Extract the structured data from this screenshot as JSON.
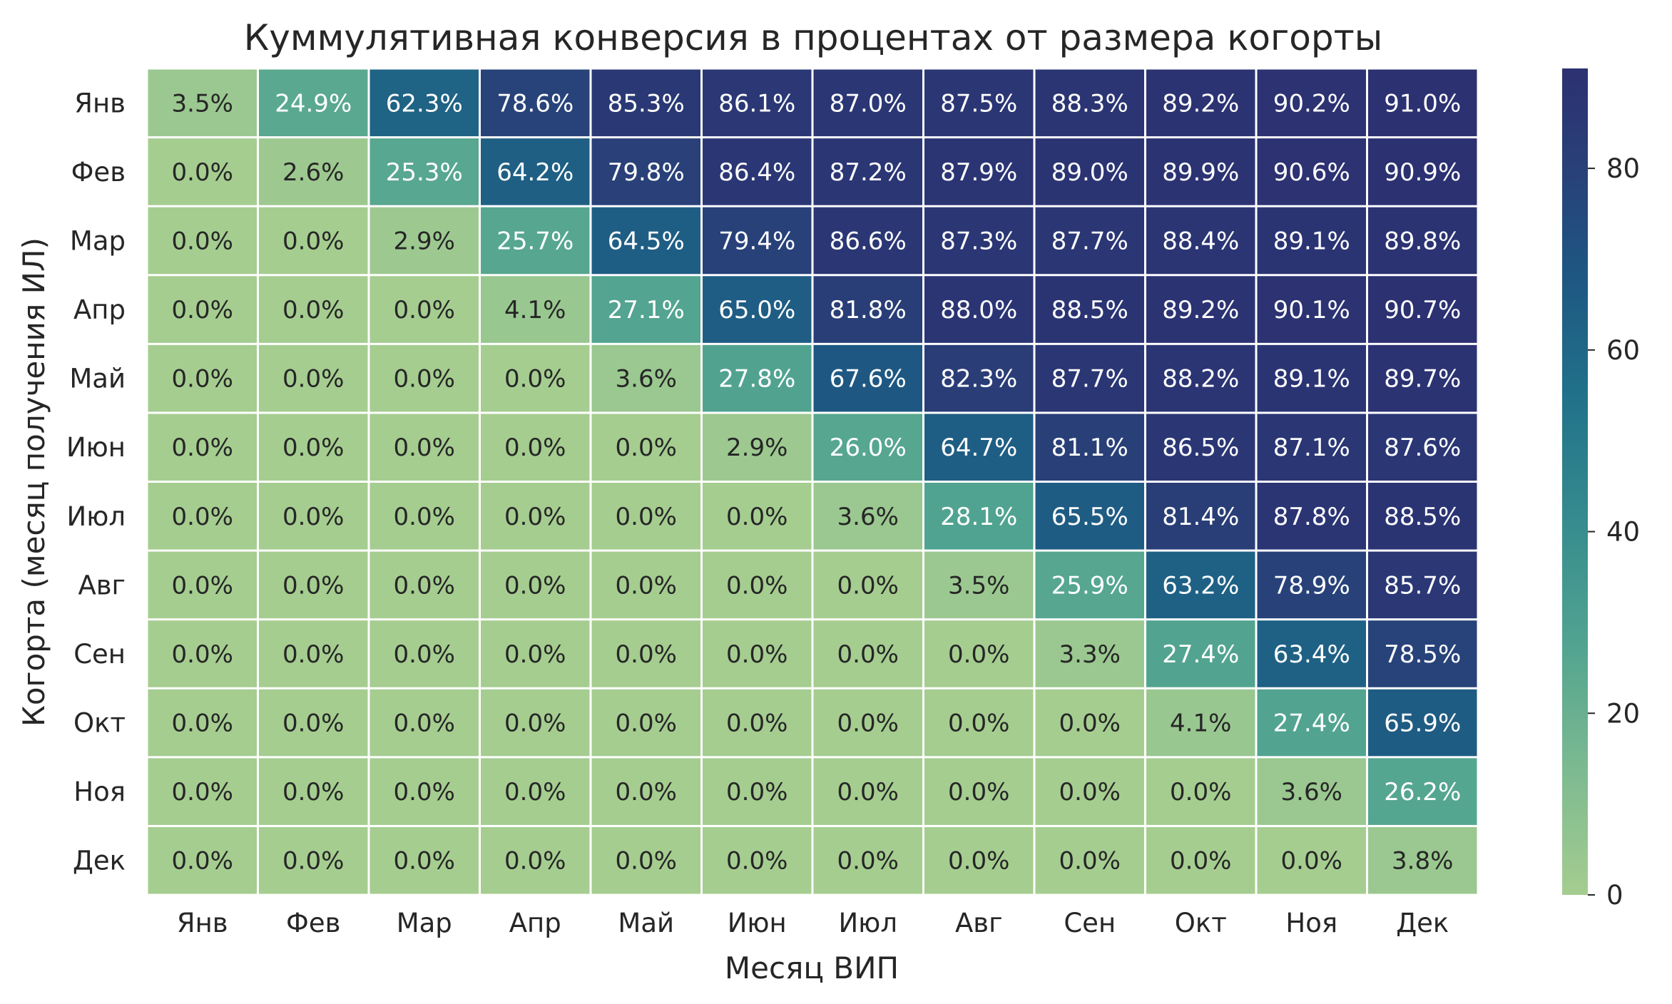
{
  "chart_data": {
    "type": "heatmap",
    "title": "Куммулятивная конверсия в процентах от размера когорты",
    "xlabel": "Месяц ВИП",
    "ylabel": "Когорта (месяц получения ИЛ)",
    "x_categories": [
      "Янв",
      "Фев",
      "Мар",
      "Апр",
      "Май",
      "Июн",
      "Июл",
      "Авг",
      "Сен",
      "Окт",
      "Ноя",
      "Дек"
    ],
    "y_categories": [
      "Янв",
      "Фев",
      "Мар",
      "Апр",
      "Май",
      "Июн",
      "Июл",
      "Авг",
      "Сен",
      "Окт",
      "Ноя",
      "Дек"
    ],
    "values": [
      [
        3.5,
        24.9,
        62.3,
        78.6,
        85.3,
        86.1,
        87.0,
        87.5,
        88.3,
        89.2,
        90.2,
        91.0
      ],
      [
        0.0,
        2.6,
        25.3,
        64.2,
        79.8,
        86.4,
        87.2,
        87.9,
        89.0,
        89.9,
        90.6,
        90.9
      ],
      [
        0.0,
        0.0,
        2.9,
        25.7,
        64.5,
        79.4,
        86.6,
        87.3,
        87.7,
        88.4,
        89.1,
        89.8
      ],
      [
        0.0,
        0.0,
        0.0,
        4.1,
        27.1,
        65.0,
        81.8,
        88.0,
        88.5,
        89.2,
        90.1,
        90.7
      ],
      [
        0.0,
        0.0,
        0.0,
        0.0,
        3.6,
        27.8,
        67.6,
        82.3,
        87.7,
        88.2,
        89.1,
        89.7
      ],
      [
        0.0,
        0.0,
        0.0,
        0.0,
        0.0,
        2.9,
        26.0,
        64.7,
        81.1,
        86.5,
        87.1,
        87.6
      ],
      [
        0.0,
        0.0,
        0.0,
        0.0,
        0.0,
        0.0,
        3.6,
        28.1,
        65.5,
        81.4,
        87.8,
        88.5
      ],
      [
        0.0,
        0.0,
        0.0,
        0.0,
        0.0,
        0.0,
        0.0,
        3.5,
        25.9,
        63.2,
        78.9,
        85.7
      ],
      [
        0.0,
        0.0,
        0.0,
        0.0,
        0.0,
        0.0,
        0.0,
        0.0,
        3.3,
        27.4,
        63.4,
        78.5
      ],
      [
        0.0,
        0.0,
        0.0,
        0.0,
        0.0,
        0.0,
        0.0,
        0.0,
        0.0,
        4.1,
        27.4,
        65.9
      ],
      [
        0.0,
        0.0,
        0.0,
        0.0,
        0.0,
        0.0,
        0.0,
        0.0,
        0.0,
        0.0,
        3.6,
        26.2
      ],
      [
        0.0,
        0.0,
        0.0,
        0.0,
        0.0,
        0.0,
        0.0,
        0.0,
        0.0,
        0.0,
        0.0,
        3.8
      ]
    ],
    "value_format": "%",
    "colorbar": {
      "ticks": [
        0,
        20,
        40,
        60,
        80
      ],
      "range": [
        0,
        91.0
      ],
      "colormap": "crest"
    },
    "colors": {
      "low": "#a5cd90",
      "high": "#2c3172",
      "grid": "#ffffff",
      "text_dark": "#262626",
      "text_light": "#ffffff"
    }
  }
}
